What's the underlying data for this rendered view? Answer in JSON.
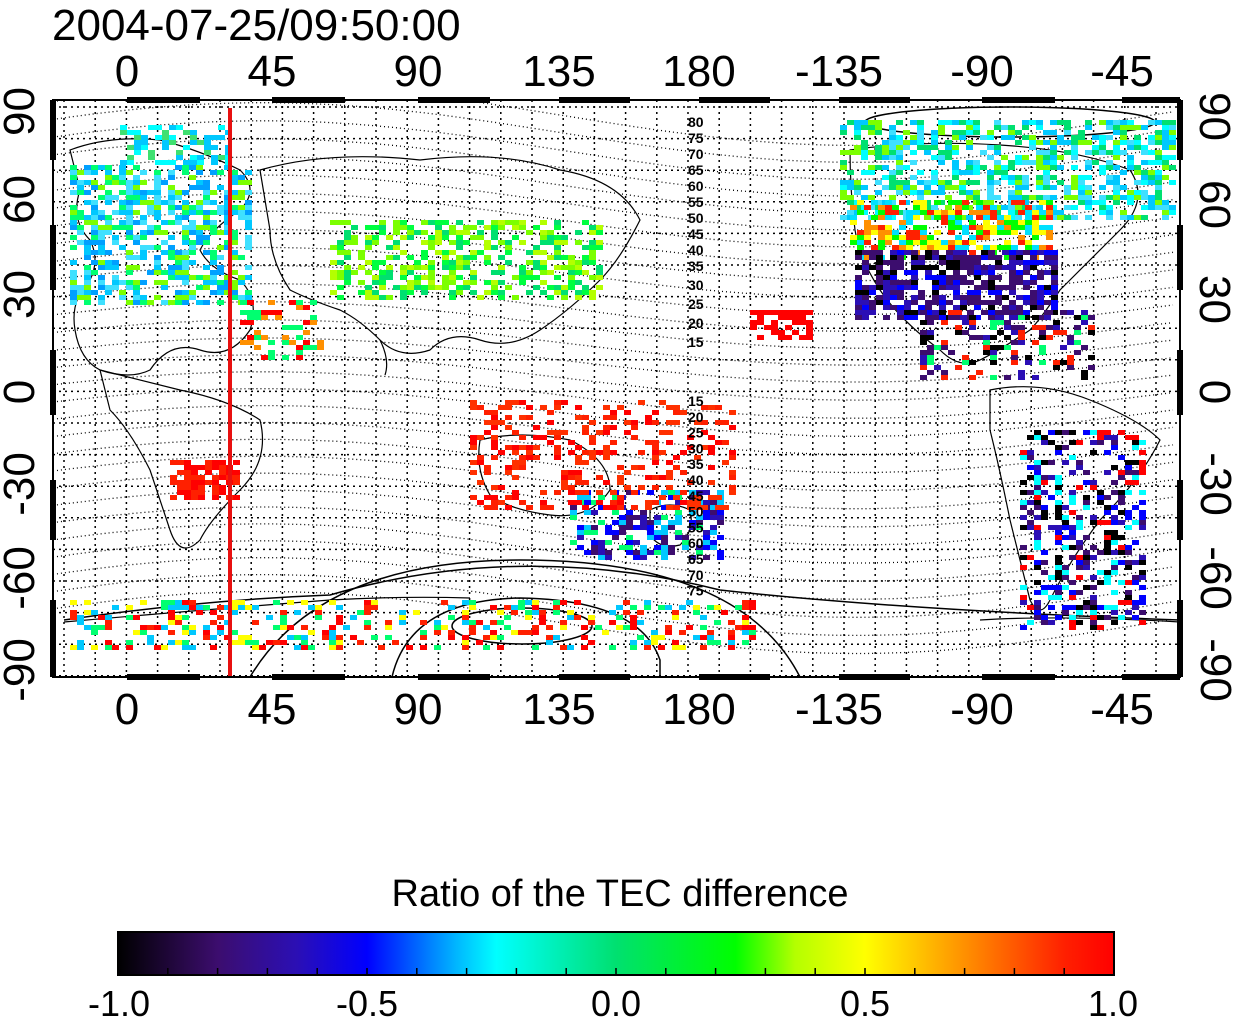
{
  "map": {
    "timestamp": "2004-07-25/09:50:00",
    "lon_ticks": [
      "0",
      "45",
      "90",
      "135",
      "180",
      "-135",
      "-90",
      "-45"
    ],
    "lat_ticks": [
      "90",
      "60",
      "30",
      "0",
      "-30",
      "-60",
      "-90"
    ],
    "contour_labels_north": [
      "80",
      "75",
      "70",
      "65",
      "60",
      "55",
      "50",
      "45",
      "40",
      "35",
      "30",
      "25",
      "20",
      "15"
    ],
    "contour_labels_south": [
      "15",
      "20",
      "25",
      "30",
      "35",
      "40",
      "45",
      "50",
      "55",
      "60",
      "65",
      "70",
      "75"
    ],
    "marker_line_longitude": 30,
    "colors": {
      "marker_line": "#e81010",
      "contour": "#000000",
      "grid": "#000000"
    }
  },
  "colorbar": {
    "title": "Ratio of the TEC difference",
    "tick_labels": [
      "-1.0",
      "-0.5",
      "0.0",
      "0.5",
      "1.0"
    ],
    "range": [
      -1.0,
      1.0
    ],
    "colors": [
      "#000000",
      "#3c0d6e",
      "#2b0fb5",
      "#0000ff",
      "#00b7ff",
      "#00ffff",
      "#00e070",
      "#00ff00",
      "#b4ff00",
      "#ffff00",
      "#ff9000",
      "#ff2000",
      "#ff0000"
    ]
  }
}
